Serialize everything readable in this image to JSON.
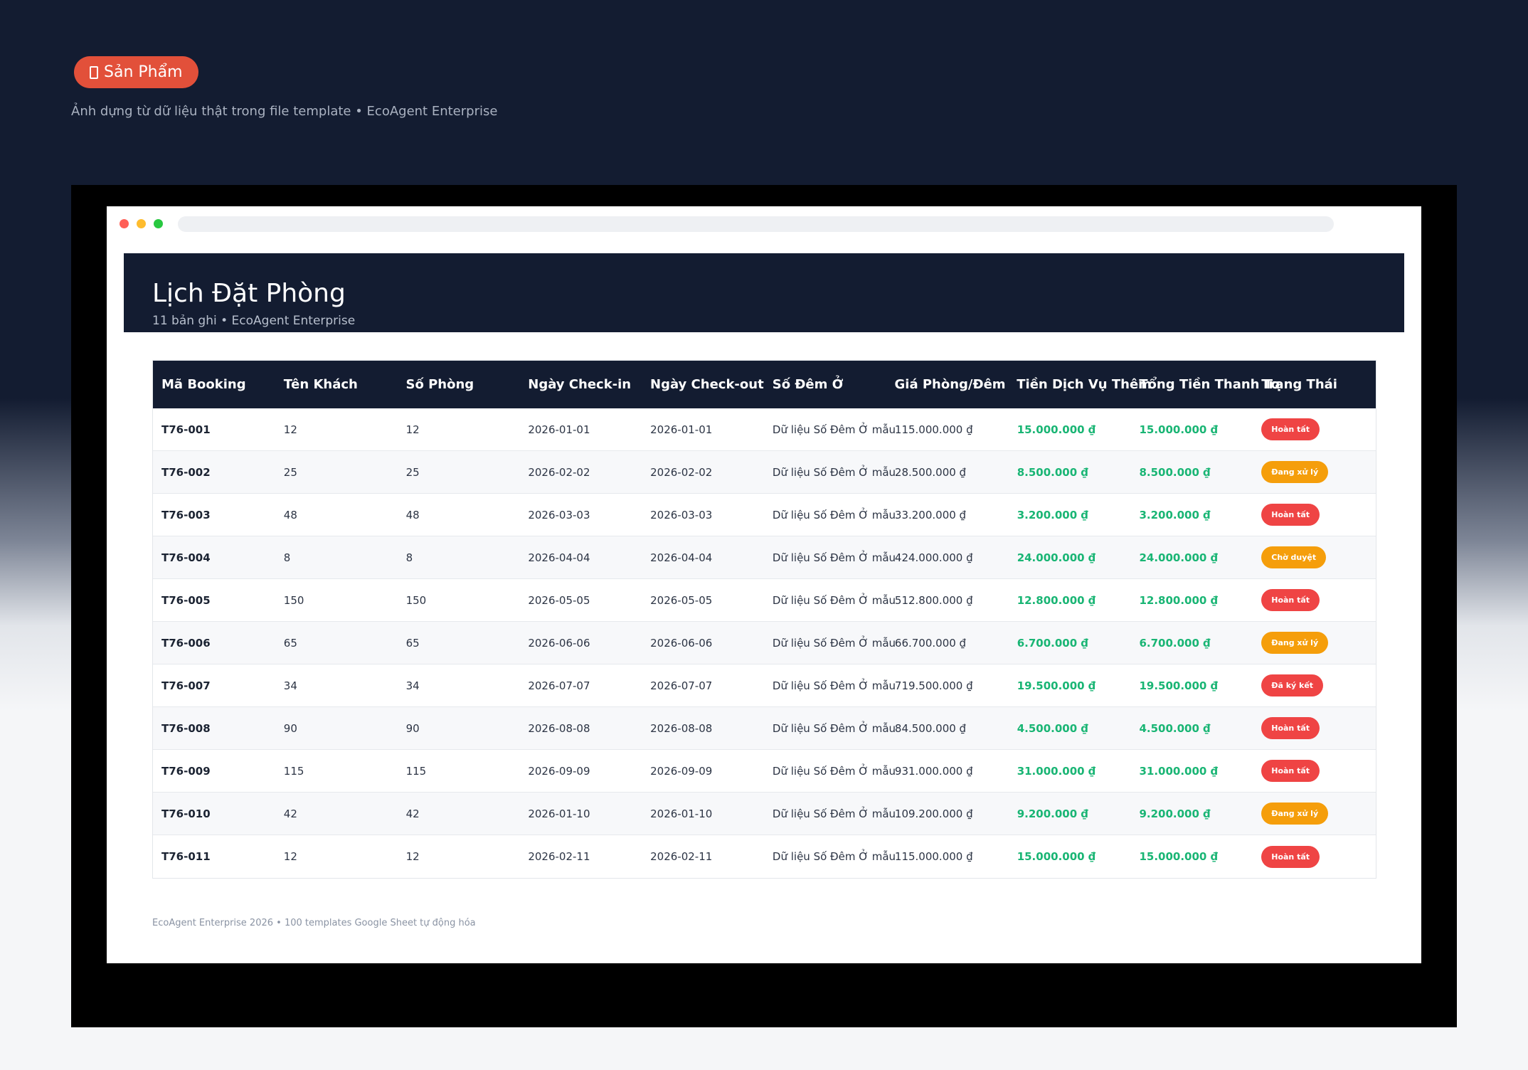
{
  "hero": {
    "pill_label": "Sản Phẩm",
    "pill_icon": "box-icon",
    "tagline": "Ảnh dựng từ dữ liệu thật trong file template • EcoAgent Enterprise"
  },
  "page": {
    "title": "Lịch Đặt Phòng",
    "subtitle": "11 bản ghi • EcoAgent Enterprise"
  },
  "colors": {
    "dark": "#131c31",
    "accent": "#e2503a",
    "money": "#19b574",
    "status_red": "#ef4444",
    "status_orange": "#f59e0b"
  },
  "table": {
    "columns": [
      "Mã Booking",
      "Tên Khách",
      "Số Phòng",
      "Ngày Check-in",
      "Ngày Check-out",
      "Số Đêm Ở",
      "Giá Phòng/Đêm",
      "Tiền Dịch Vụ Thêm",
      "Tổng Tiền Thanh To",
      "Trạng Thái"
    ],
    "rows": [
      {
        "code": "T76-001",
        "guest": "12",
        "room": "12",
        "checkin": "2026-01-01",
        "checkout": "2026-01-01",
        "nights": "Dữ liệu Số Đêm Ở mẫu",
        "price": "115.000.000 ₫",
        "service": "15.000.000 ₫",
        "total": "15.000.000 ₫",
        "status": "Hoàn tất",
        "status_color": "#ef4444"
      },
      {
        "code": "T76-002",
        "guest": "25",
        "room": "25",
        "checkin": "2026-02-02",
        "checkout": "2026-02-02",
        "nights": "Dữ liệu Số Đêm Ở mẫu",
        "price": "28.500.000 ₫",
        "service": "8.500.000 ₫",
        "total": "8.500.000 ₫",
        "status": "Đang xử lý",
        "status_color": "#f59e0b"
      },
      {
        "code": "T76-003",
        "guest": "48",
        "room": "48",
        "checkin": "2026-03-03",
        "checkout": "2026-03-03",
        "nights": "Dữ liệu Số Đêm Ở mẫu",
        "price": "33.200.000 ₫",
        "service": "3.200.000 ₫",
        "total": "3.200.000 ₫",
        "status": "Hoàn tất",
        "status_color": "#ef4444"
      },
      {
        "code": "T76-004",
        "guest": "8",
        "room": "8",
        "checkin": "2026-04-04",
        "checkout": "2026-04-04",
        "nights": "Dữ liệu Số Đêm Ở mẫu",
        "price": "424.000.000 ₫",
        "service": "24.000.000 ₫",
        "total": "24.000.000 ₫",
        "status": "Chờ duyệt",
        "status_color": "#f59e0b"
      },
      {
        "code": "T76-005",
        "guest": "150",
        "room": "150",
        "checkin": "2026-05-05",
        "checkout": "2026-05-05",
        "nights": "Dữ liệu Số Đêm Ở mẫu",
        "price": "512.800.000 ₫",
        "service": "12.800.000 ₫",
        "total": "12.800.000 ₫",
        "status": "Hoàn tất",
        "status_color": "#ef4444"
      },
      {
        "code": "T76-006",
        "guest": "65",
        "room": "65",
        "checkin": "2026-06-06",
        "checkout": "2026-06-06",
        "nights": "Dữ liệu Số Đêm Ở mẫu",
        "price": "66.700.000 ₫",
        "service": "6.700.000 ₫",
        "total": "6.700.000 ₫",
        "status": "Đang xử lý",
        "status_color": "#f59e0b"
      },
      {
        "code": "T76-007",
        "guest": "34",
        "room": "34",
        "checkin": "2026-07-07",
        "checkout": "2026-07-07",
        "nights": "Dữ liệu Số Đêm Ở mẫu",
        "price": "719.500.000 ₫",
        "service": "19.500.000 ₫",
        "total": "19.500.000 ₫",
        "status": "Đã ký kết",
        "status_color": "#ef4444"
      },
      {
        "code": "T76-008",
        "guest": "90",
        "room": "90",
        "checkin": "2026-08-08",
        "checkout": "2026-08-08",
        "nights": "Dữ liệu Số Đêm Ở mẫu",
        "price": "84.500.000 ₫",
        "service": "4.500.000 ₫",
        "total": "4.500.000 ₫",
        "status": "Hoàn tất",
        "status_color": "#ef4444"
      },
      {
        "code": "T76-009",
        "guest": "115",
        "room": "115",
        "checkin": "2026-09-09",
        "checkout": "2026-09-09",
        "nights": "Dữ liệu Số Đêm Ở mẫu",
        "price": "931.000.000 ₫",
        "service": "31.000.000 ₫",
        "total": "31.000.000 ₫",
        "status": "Hoàn tất",
        "status_color": "#ef4444"
      },
      {
        "code": "T76-010",
        "guest": "42",
        "room": "42",
        "checkin": "2026-01-10",
        "checkout": "2026-01-10",
        "nights": "Dữ liệu Số Đêm Ở mẫu",
        "price": "109.200.000 ₫",
        "service": "9.200.000 ₫",
        "total": "9.200.000 ₫",
        "status": "Đang xử lý",
        "status_color": "#f59e0b"
      },
      {
        "code": "T76-011",
        "guest": "12",
        "room": "12",
        "checkin": "2026-02-11",
        "checkout": "2026-02-11",
        "nights": "Dữ liệu Số Đêm Ở mẫu",
        "price": "115.000.000 ₫",
        "service": "15.000.000 ₫",
        "total": "15.000.000 ₫",
        "status": "Hoàn tất",
        "status_color": "#ef4444"
      }
    ]
  },
  "footer": {
    "text": "EcoAgent Enterprise 2026 • 100 templates Google Sheet tự động hóa"
  }
}
